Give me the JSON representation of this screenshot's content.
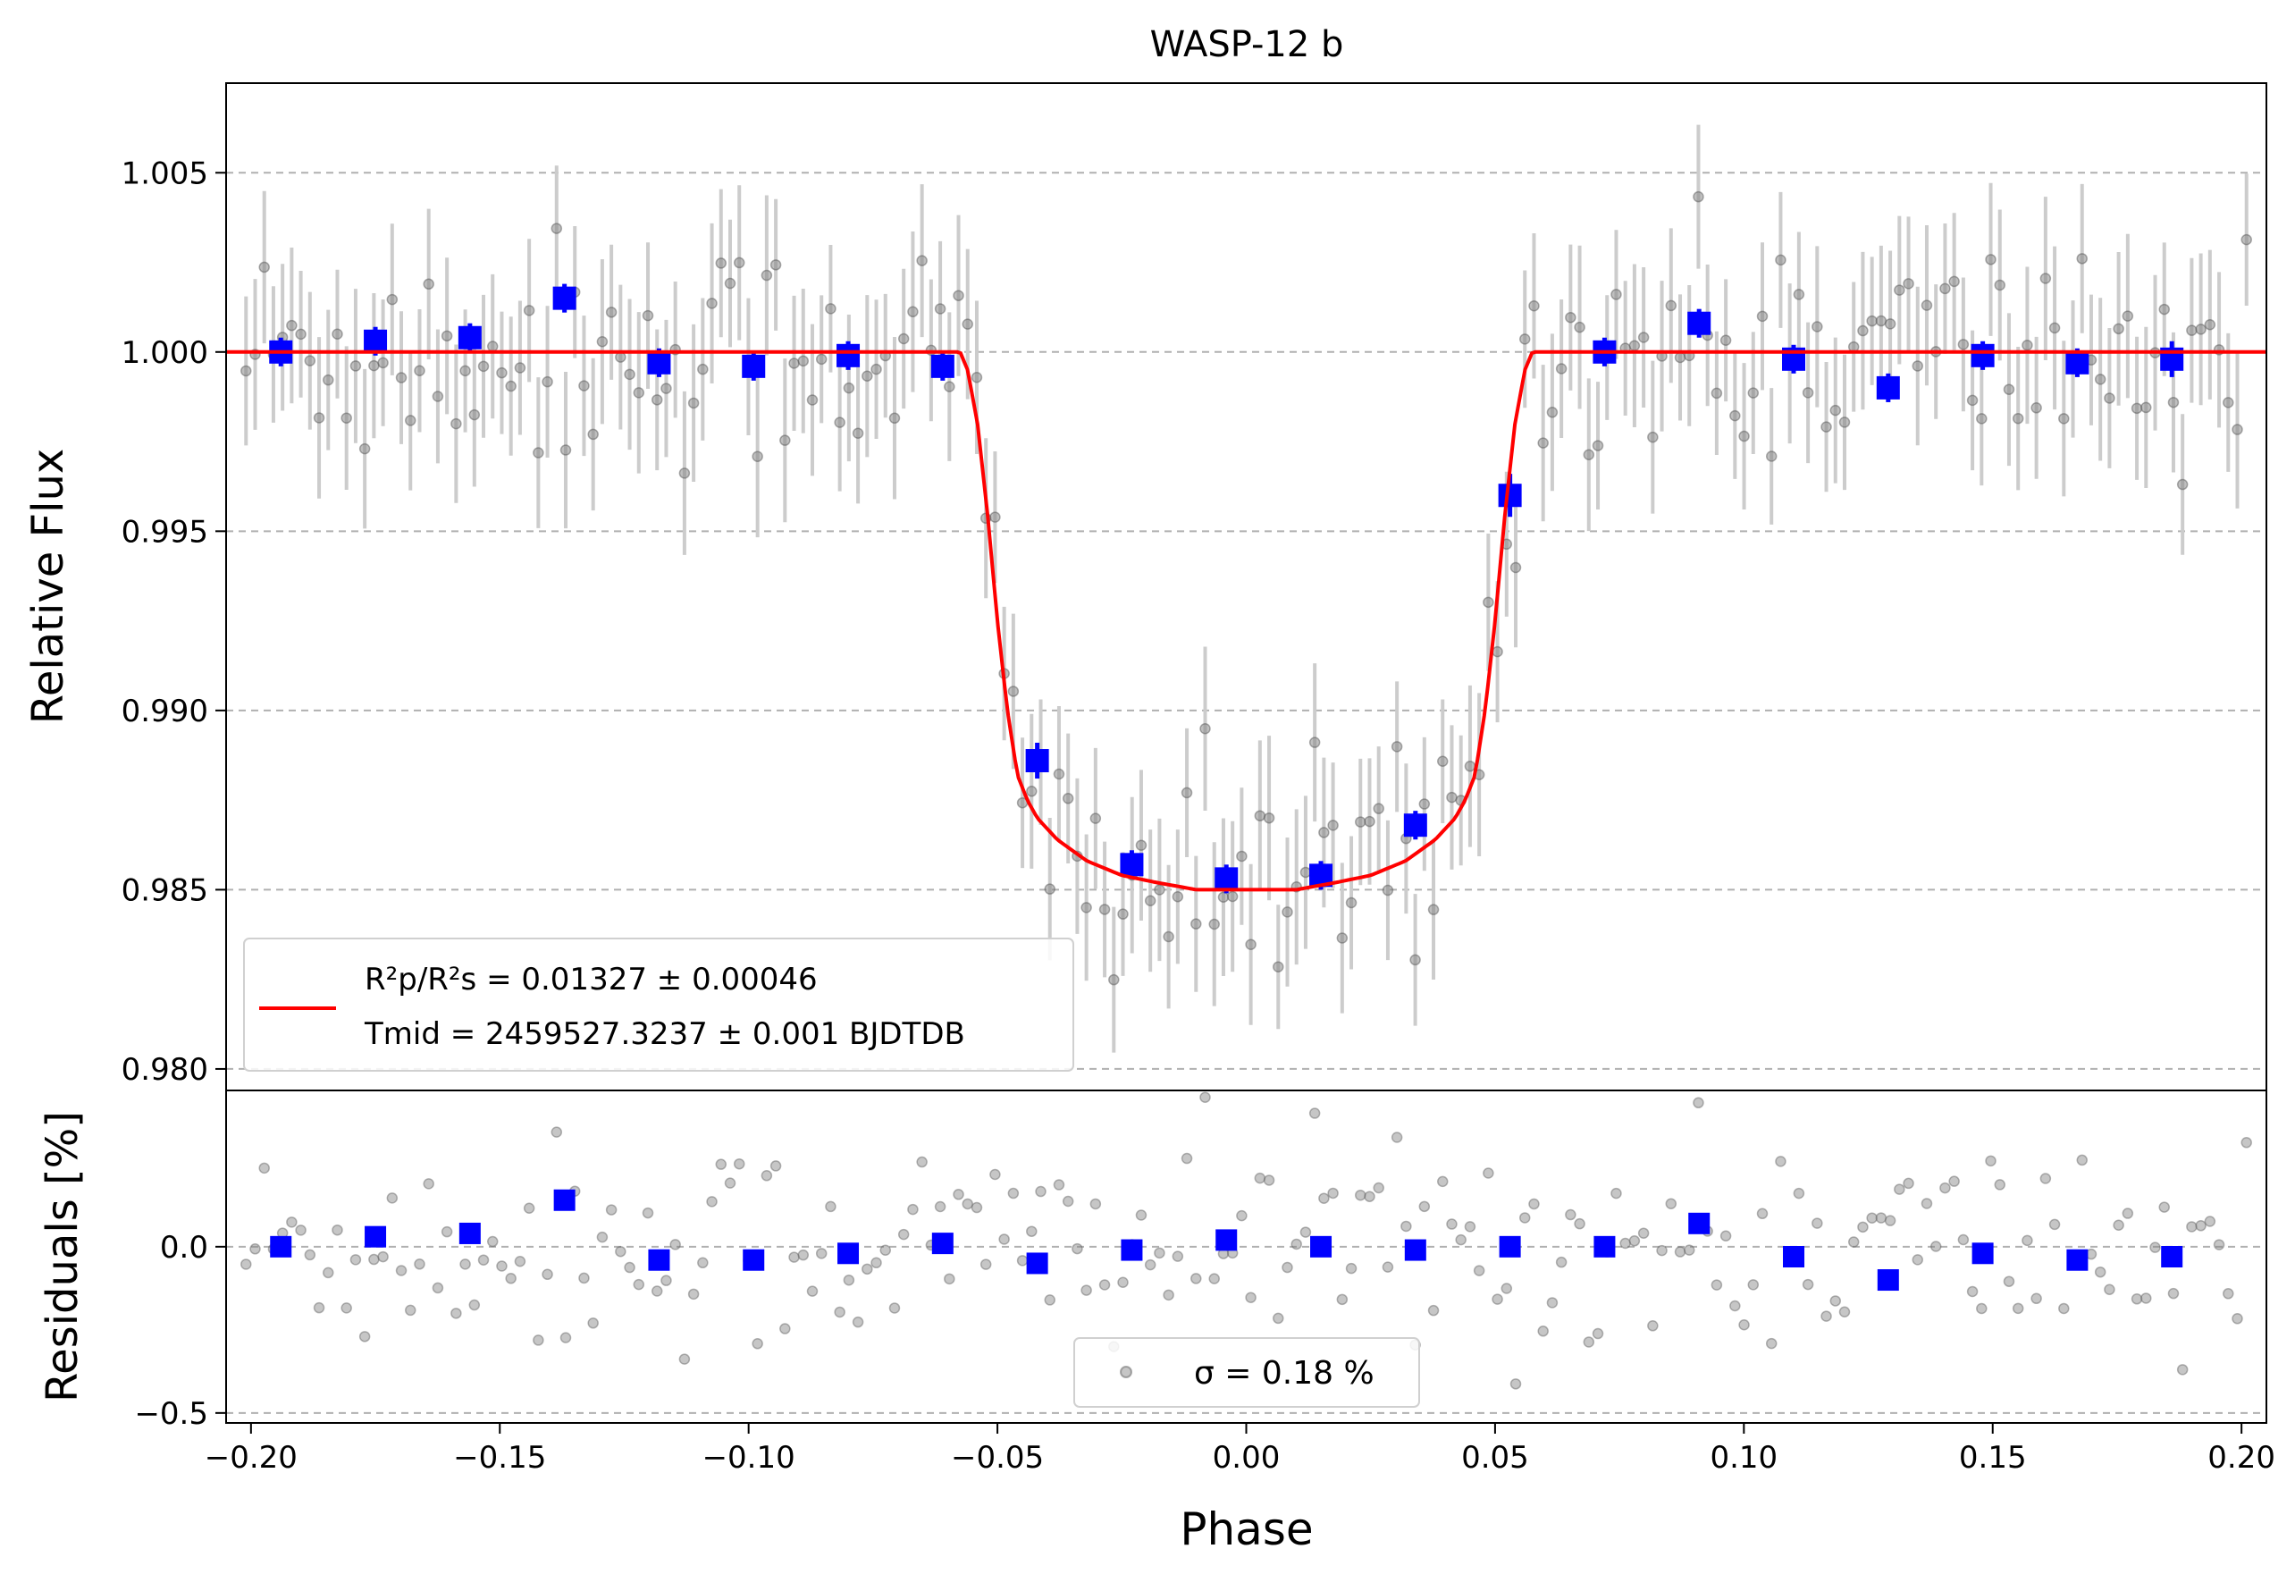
{
  "chart_data": [
    {
      "type": "scatter",
      "title": "WASP-12 b",
      "xlabel": "",
      "ylabel": "Relative Flux",
      "xlim": [
        -0.205,
        0.205
      ],
      "ylim": [
        0.9794,
        1.0075
      ],
      "yticks": [
        0.98,
        0.985,
        0.99,
        0.995,
        1.0,
        1.005
      ],
      "ytick_labels": [
        "0.980",
        "0.985",
        "0.990",
        "0.995",
        "1.000",
        "1.005"
      ],
      "grid": "y-dashed",
      "legend": {
        "placement": "lower-left",
        "line1": "R²p/R²s = 0.01327 ± 0.00046",
        "line2": "Tmid = 2459527.3237 ± 0.001 BJDTDB"
      },
      "colors": {
        "model": "#ff0000",
        "binned": "#0000ff",
        "raw": "#808080",
        "errorbar": "#cccccc"
      },
      "binned_data": {
        "x": [
          -0.194,
          -0.175,
          -0.156,
          -0.137,
          -0.118,
          -0.099,
          -0.08,
          -0.061,
          -0.042,
          -0.023,
          -0.004,
          0.015,
          0.034,
          0.053,
          0.072,
          0.091,
          0.11,
          0.129,
          0.148,
          0.167,
          0.186
        ],
        "y": [
          1.0,
          1.0003,
          1.0004,
          1.0015,
          0.9997,
          0.9996,
          0.9999,
          0.9996,
          0.9886,
          0.9857,
          0.9853,
          0.9854,
          0.9868,
          0.996,
          1.0,
          1.0008,
          0.9998,
          0.999,
          0.9999,
          0.9997,
          0.9998
        ],
        "yerr": [
          0.0004,
          0.0004,
          0.0004,
          0.0004,
          0.0004,
          0.0004,
          0.0004,
          0.0004,
          0.0005,
          0.0004,
          0.0004,
          0.0004,
          0.0004,
          0.0006,
          0.0004,
          0.0004,
          0.0004,
          0.0004,
          0.0004,
          0.0004,
          0.0005
        ]
      },
      "model": {
        "x": [
          -0.205,
          -0.0575,
          -0.056,
          -0.054,
          -0.052,
          -0.05,
          -0.048,
          -0.046,
          -0.044,
          -0.042,
          -0.038,
          -0.032,
          -0.025,
          -0.018,
          -0.01,
          0.0,
          0.01,
          0.018,
          0.025,
          0.032,
          0.038,
          0.042,
          0.044,
          0.046,
          0.048,
          0.05,
          0.052,
          0.054,
          0.056,
          0.0575,
          0.205
        ],
        "y": [
          1.0,
          1.0,
          0.9995,
          0.998,
          0.9955,
          0.9925,
          0.99,
          0.9882,
          0.9875,
          0.987,
          0.9864,
          0.9858,
          0.9854,
          0.9852,
          0.985,
          0.985,
          0.985,
          0.9852,
          0.9854,
          0.9858,
          0.9864,
          0.987,
          0.9875,
          0.9882,
          0.99,
          0.9925,
          0.9955,
          0.998,
          0.9995,
          1.0,
          1.0
        ]
      },
      "raw_noise_std": 0.0017
    },
    {
      "type": "scatter",
      "title": "",
      "xlabel": "Phase",
      "ylabel": "Residuals [%]",
      "xlim": [
        -0.205,
        0.205
      ],
      "ylim": [
        -0.53,
        0.47
      ],
      "xticks": [
        -0.2,
        -0.15,
        -0.1,
        -0.05,
        0.0,
        0.05,
        0.1,
        0.15,
        0.2
      ],
      "xtick_labels": [
        "−0.20",
        "−0.15",
        "−0.10",
        "−0.05",
        "0.00",
        "0.05",
        "0.10",
        "0.15",
        "0.20"
      ],
      "yticks": [
        -0.5,
        0.0
      ],
      "ytick_labels": [
        "−0.5",
        "0.0"
      ],
      "grid": "y-dashed",
      "legend": {
        "placement": "lower-center",
        "label": "σ = 0.18 %"
      },
      "binned_residuals": {
        "x": [
          -0.194,
          -0.175,
          -0.156,
          -0.137,
          -0.118,
          -0.099,
          -0.08,
          -0.061,
          -0.042,
          -0.023,
          -0.004,
          0.015,
          0.034,
          0.053,
          0.072,
          0.091,
          0.11,
          0.129,
          0.148,
          0.167,
          0.186
        ],
        "y": [
          0.0,
          0.03,
          0.04,
          0.14,
          -0.04,
          -0.04,
          -0.02,
          0.01,
          -0.05,
          -0.01,
          0.02,
          0.0,
          -0.01,
          0.0,
          0.0,
          0.07,
          -0.03,
          -0.1,
          -0.02,
          -0.04,
          -0.03
        ]
      }
    }
  ]
}
